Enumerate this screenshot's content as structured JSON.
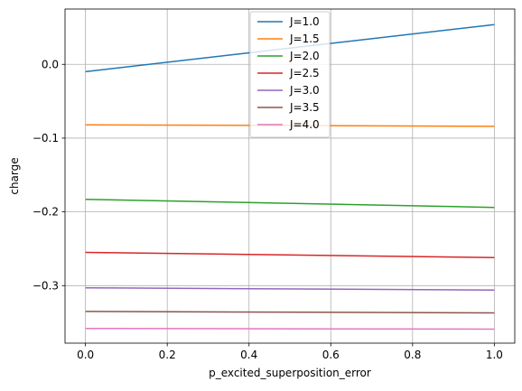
{
  "chart_data": {
    "type": "line",
    "xlabel": "p_excited_superposition_error",
    "ylabel": "charge",
    "xlim": [
      -0.05,
      1.05
    ],
    "ylim": [
      -0.378,
      0.075
    ],
    "xticks": [
      {
        "value": 0.0,
        "label": "0.0"
      },
      {
        "value": 0.2,
        "label": "0.2"
      },
      {
        "value": 0.4,
        "label": "0.4"
      },
      {
        "value": 0.6,
        "label": "0.6"
      },
      {
        "value": 0.8,
        "label": "0.8"
      },
      {
        "value": 1.0,
        "label": "1.0"
      }
    ],
    "yticks": [
      {
        "value": 0.0,
        "label": "0.0"
      },
      {
        "value": -0.1,
        "label": "−0.1"
      },
      {
        "value": -0.2,
        "label": "−0.2"
      },
      {
        "value": -0.3,
        "label": "−0.3"
      }
    ],
    "grid": true,
    "legend_position": "top-center",
    "series": [
      {
        "name": "J=1.0",
        "color": "#1f77b4",
        "x": [
          0.0,
          1.0
        ],
        "y": [
          -0.01,
          0.054
        ]
      },
      {
        "name": "J=1.5",
        "color": "#ff7f0e",
        "x": [
          0.0,
          1.0
        ],
        "y": [
          -0.082,
          -0.084
        ]
      },
      {
        "name": "J=2.0",
        "color": "#2ca02c",
        "x": [
          0.0,
          1.0
        ],
        "y": [
          -0.183,
          -0.194
        ]
      },
      {
        "name": "J=2.5",
        "color": "#d62728",
        "x": [
          0.0,
          1.0
        ],
        "y": [
          -0.255,
          -0.262
        ]
      },
      {
        "name": "J=3.0",
        "color": "#9467bd",
        "x": [
          0.0,
          1.0
        ],
        "y": [
          -0.303,
          -0.306
        ]
      },
      {
        "name": "J=3.5",
        "color": "#8c564b",
        "x": [
          0.0,
          1.0
        ],
        "y": [
          -0.335,
          -0.337
        ]
      },
      {
        "name": "J=4.0",
        "color": "#e377c2",
        "x": [
          0.0,
          1.0
        ],
        "y": [
          -0.358,
          -0.359
        ]
      }
    ]
  }
}
